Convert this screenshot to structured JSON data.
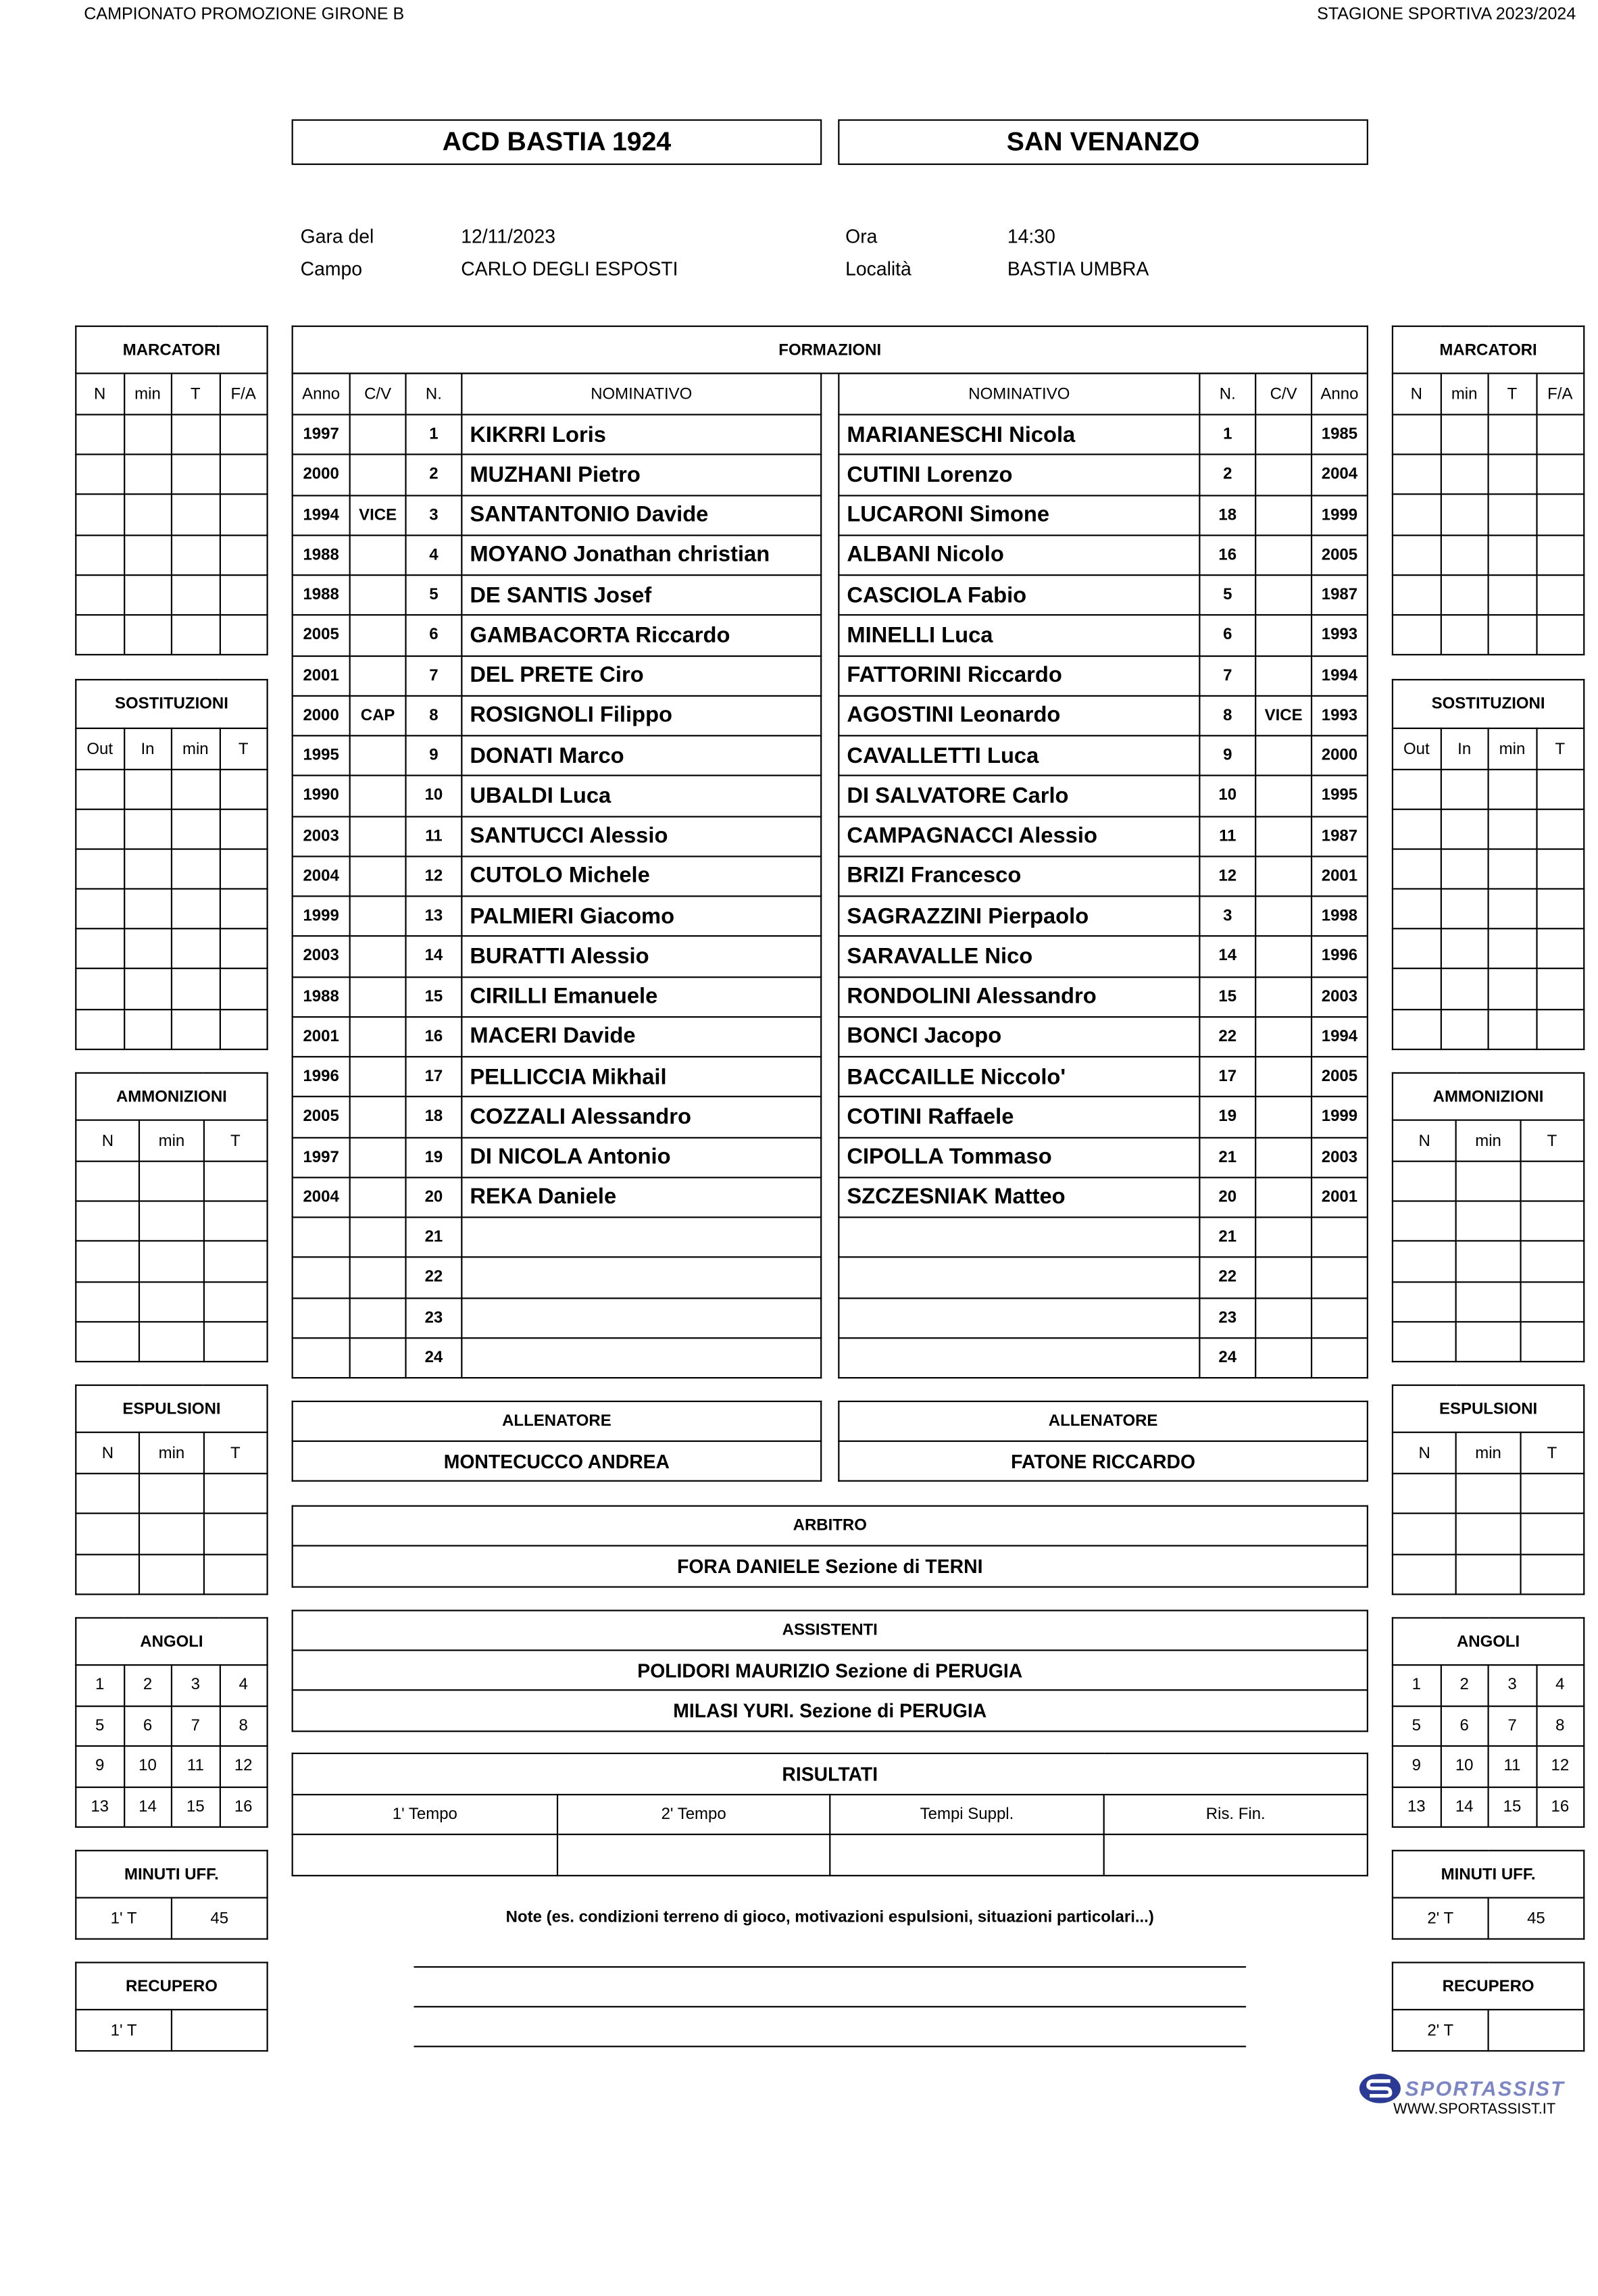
{
  "header": {
    "competition": "CAMPIONATO PROMOZIONE  GIRONE B",
    "season": "STAGIONE SPORTIVA 2023/2024"
  },
  "teams": {
    "home": "ACD BASTIA 1924",
    "away": "SAN VENANZO"
  },
  "match": {
    "date_label": "Gara del",
    "date": "12/11/2023",
    "time_label": "Ora",
    "time": "14:30",
    "field_label": "Campo",
    "field": "CARLO DEGLI ESPOSTI",
    "place_label": "Località",
    "place": "BASTIA UMBRA"
  },
  "formazioni": {
    "title": "FORMAZIONI",
    "home_headers": [
      "Anno",
      "C/V",
      "N.",
      "NOMINATIVO"
    ],
    "away_headers": [
      "NOMINATIVO",
      "N.",
      "C/V",
      "Anno"
    ],
    "home": [
      [
        "1997",
        "",
        "1",
        "KIKRRI Loris"
      ],
      [
        "2000",
        "",
        "2",
        "MUZHANI Pietro"
      ],
      [
        "1994",
        "VICE",
        "3",
        "SANTANTONIO Davide"
      ],
      [
        "1988",
        "",
        "4",
        "MOYANO Jonathan christian"
      ],
      [
        "1988",
        "",
        "5",
        "DE SANTIS Josef"
      ],
      [
        "2005",
        "",
        "6",
        "GAMBACORTA Riccardo"
      ],
      [
        "2001",
        "",
        "7",
        "DEL PRETE Ciro"
      ],
      [
        "2000",
        "CAP",
        "8",
        "ROSIGNOLI Filippo"
      ],
      [
        "1995",
        "",
        "9",
        "DONATI Marco"
      ],
      [
        "1990",
        "",
        "10",
        "UBALDI Luca"
      ],
      [
        "2003",
        "",
        "11",
        "SANTUCCI Alessio"
      ],
      [
        "2004",
        "",
        "12",
        "CUTOLO Michele"
      ],
      [
        "1999",
        "",
        "13",
        "PALMIERI Giacomo"
      ],
      [
        "2003",
        "",
        "14",
        "BURATTI Alessio"
      ],
      [
        "1988",
        "",
        "15",
        "CIRILLI Emanuele"
      ],
      [
        "2001",
        "",
        "16",
        "MACERI Davide"
      ],
      [
        "1996",
        "",
        "17",
        "PELLICCIA Mikhail"
      ],
      [
        "2005",
        "",
        "18",
        "COZZALI Alessandro"
      ],
      [
        "1997",
        "",
        "19",
        "DI NICOLA Antonio"
      ],
      [
        "2004",
        "",
        "20",
        "REKA Daniele"
      ],
      [
        "",
        "",
        "21",
        ""
      ],
      [
        "",
        "",
        "22",
        ""
      ],
      [
        "",
        "",
        "23",
        ""
      ],
      [
        "",
        "",
        "24",
        ""
      ]
    ],
    "away": [
      [
        "MARIANESCHI Nicola",
        "1",
        "",
        "1985"
      ],
      [
        "CUTINI  Lorenzo",
        "2",
        "",
        "2004"
      ],
      [
        "LUCARONI Simone",
        "18",
        "",
        "1999"
      ],
      [
        "ALBANI Nicolo",
        "16",
        "",
        "2005"
      ],
      [
        "CASCIOLA  Fabio",
        "5",
        "",
        "1987"
      ],
      [
        "MINELLI Luca",
        "6",
        "",
        "1993"
      ],
      [
        "FATTORINI Riccardo",
        "7",
        "",
        "1994"
      ],
      [
        "AGOSTINI Leonardo",
        "8",
        "VICE",
        "1993"
      ],
      [
        "CAVALLETTI Luca",
        "9",
        "",
        "2000"
      ],
      [
        "DI SALVATORE Carlo",
        "10",
        "",
        "1995"
      ],
      [
        "CAMPAGNACCI Alessio",
        "11",
        "",
        "1987"
      ],
      [
        "BRIZI Francesco",
        "12",
        "",
        "2001"
      ],
      [
        "SAGRAZZINI Pierpaolo",
        "3",
        "",
        "1998"
      ],
      [
        "SARAVALLE Nico",
        "14",
        "",
        "1996"
      ],
      [
        "RONDOLINI Alessandro",
        "15",
        "",
        "2003"
      ],
      [
        "BONCI Jacopo",
        "22",
        "",
        "1994"
      ],
      [
        "BACCAILLE Niccolo'",
        "17",
        "",
        "2005"
      ],
      [
        "COTINI Raffaele",
        "19",
        "",
        "1999"
      ],
      [
        "CIPOLLA Tommaso",
        "21",
        "",
        "2003"
      ],
      [
        "SZCZESNIAK Matteo",
        "20",
        "",
        "2001"
      ],
      [
        "",
        "21",
        "",
        ""
      ],
      [
        "",
        "22",
        "",
        ""
      ],
      [
        "",
        "23",
        "",
        ""
      ],
      [
        "",
        "24",
        "",
        ""
      ]
    ]
  },
  "side": {
    "marcatori": {
      "title": "MARCATORI",
      "headers": [
        "N",
        "min",
        "T",
        "F/A"
      ]
    },
    "sostituzioni": {
      "title": "SOSTITUZIONI",
      "headers": [
        "Out",
        "In",
        "min",
        "T"
      ]
    },
    "ammonizioni": {
      "title": "AMMONIZIONI",
      "headers": [
        "N",
        "min",
        "T"
      ]
    },
    "espulsioni": {
      "title": "ESPULSIONI",
      "headers": [
        "N",
        "min",
        "T"
      ]
    },
    "angoli": {
      "title": "ANGOLI",
      "cells": [
        [
          "1",
          "2",
          "3",
          "4"
        ],
        [
          "5",
          "6",
          "7",
          "8"
        ],
        [
          "9",
          "10",
          "11",
          "12"
        ],
        [
          "13",
          "14",
          "15",
          "16"
        ]
      ]
    },
    "minuti_uff": {
      "title": "MINUTI UFF.",
      "home": [
        "1' T",
        "45"
      ],
      "away": [
        "2' T",
        "45"
      ]
    },
    "recupero": {
      "title": "RECUPERO",
      "home": [
        "1' T",
        ""
      ],
      "away": [
        "2' T",
        ""
      ]
    }
  },
  "allenatori": {
    "label": "ALLENATORE",
    "home": "MONTECUCCO ANDREA",
    "away": "FATONE RICCARDO"
  },
  "arbitro": {
    "label": "ARBITRO",
    "name": "FORA DANIELE  Sezione di TERNI"
  },
  "assistenti": {
    "label": "ASSISTENTI",
    "names": [
      "POLIDORI MAURIZIO  Sezione di PERUGIA",
      "MILASI YURI.  Sezione di PERUGIA"
    ]
  },
  "risultati": {
    "label": "RISULTATI",
    "headers": [
      "1' Tempo",
      "2' Tempo",
      "Tempi Suppl.",
      "Ris. Fin."
    ],
    "values": [
      "",
      "",
      "",
      ""
    ]
  },
  "note": {
    "label": "Note (es. condizioni terreno di gioco, motivazioni espulsioni, situazioni particolari...)"
  },
  "footer": {
    "logo_text": "SPORTASSIST",
    "url": "WWW.SPORTASSIST.IT",
    "logo_color": "#2b3a94"
  }
}
